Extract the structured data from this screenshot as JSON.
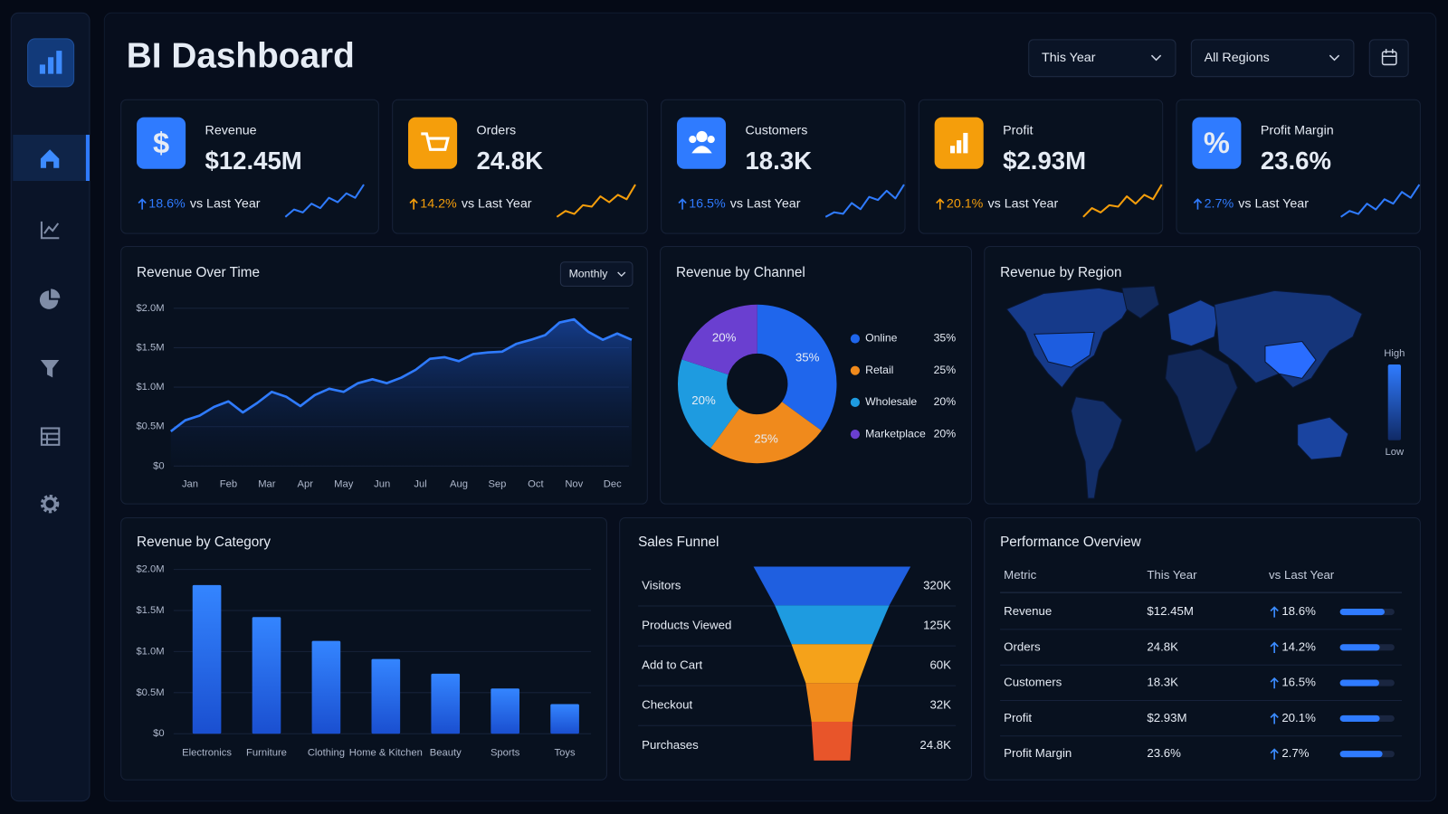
{
  "header": {
    "title": "BI Dashboard",
    "filters": [
      "This Year",
      "All Regions"
    ]
  },
  "kpis": [
    {
      "icon": "$",
      "label": "Revenue",
      "value": "$12.45M",
      "change": "18.6%",
      "compare": "vs Last Year",
      "color": "#2f7bff",
      "trend": [
        2,
        3,
        2.6,
        3.8,
        3.2,
        4.6,
        4,
        5.2,
        4.6,
        6.4
      ]
    },
    {
      "label": "Orders",
      "value": "24.8K",
      "change": "14.2%",
      "compare": "vs Last Year",
      "color": "#f59e0b",
      "trend": [
        2,
        2.8,
        2.4,
        3.6,
        3.4,
        4.8,
        4,
        5,
        4.4,
        6.4
      ]
    },
    {
      "label": "Customers",
      "value": "18.3K",
      "change": "16.5%",
      "compare": "vs Last Year",
      "color": "#2f7bff",
      "trend": [
        2,
        2.6,
        2.4,
        3.8,
        3,
        4.6,
        4.2,
        5.4,
        4.4,
        6.2
      ]
    },
    {
      "label": "Profit",
      "value": "$2.93M",
      "change": "20.1%",
      "compare": "vs Last Year",
      "color": "#f59e0b",
      "trend": [
        2,
        3.2,
        2.6,
        3.6,
        3.4,
        4.8,
        3.8,
        5,
        4.4,
        6.4
      ]
    },
    {
      "icon": "%",
      "label": "Profit Margin",
      "value": "23.6%",
      "change": "2.7%",
      "compare": "vs Last Year",
      "color": "#2f7bff",
      "trend": [
        2,
        2.8,
        2.4,
        3.8,
        3,
        4.4,
        3.8,
        5.4,
        4.6,
        6.4
      ]
    }
  ],
  "chart_data": [
    {
      "type": "line",
      "title": "Revenue Over Time",
      "control": "Monthly",
      "color": "#2f7bff",
      "grid": true,
      "x": [
        -0.5,
        -0.125,
        0.25,
        0.625,
        1,
        1.375,
        1.75,
        2.125,
        2.5,
        2.875,
        3.25,
        3.625,
        4,
        4.375,
        4.75,
        5.125,
        5.5,
        5.875,
        6.25,
        6.625,
        7,
        7.375,
        7.75,
        8.125,
        8.5,
        8.875,
        9.25,
        9.625,
        10,
        10.375,
        10.75,
        11.125,
        11.5
      ],
      "values": [
        440000,
        580000,
        640000,
        750000,
        820000,
        680000,
        800000,
        940000,
        880000,
        760000,
        900000,
        980000,
        940000,
        1050000,
        1100000,
        1050000,
        1120000,
        1220000,
        1360000,
        1380000,
        1330000,
        1420000,
        1440000,
        1450000,
        1550000,
        1600000,
        1660000,
        1820000,
        1860000,
        1700000,
        1600000,
        1680000,
        1600000
      ],
      "xlim": [
        -0.5,
        11.5
      ],
      "xticks": [
        {
          "value": 0,
          "label": "Jan"
        },
        {
          "value": 1,
          "label": "Feb"
        },
        {
          "value": 2,
          "label": "Mar"
        },
        {
          "value": 3,
          "label": "Apr"
        },
        {
          "value": 4,
          "label": "May"
        },
        {
          "value": 5,
          "label": "Jun"
        },
        {
          "value": 6,
          "label": "Jul"
        },
        {
          "value": 7,
          "label": "Aug"
        },
        {
          "value": 8,
          "label": "Sep"
        },
        {
          "value": 9,
          "label": "Oct"
        },
        {
          "value": 10,
          "label": "Nov"
        },
        {
          "value": 11,
          "label": "Dec"
        }
      ],
      "ylim": [
        0,
        2000000
      ],
      "yticks": [
        {
          "value": 0,
          "label": "$0"
        },
        {
          "value": 500000,
          "label": "$0.5M"
        },
        {
          "value": 1000000,
          "label": "$1.0M"
        },
        {
          "value": 1500000,
          "label": "$1.5M"
        },
        {
          "value": 2000000,
          "label": "$2.0M"
        }
      ]
    },
    {
      "type": "pie",
      "title": "Revenue by Channel",
      "categories": [
        "Online",
        "Retail",
        "Wholesale",
        "Marketplace"
      ],
      "values": [
        35,
        25,
        20,
        20
      ],
      "value_labels": [
        "35%",
        "25%",
        "20%",
        "20%"
      ],
      "colors": [
        "#1f66ec",
        "#f08a1c",
        "#1e9be0",
        "#6a3fd0"
      ]
    },
    {
      "type": "map",
      "title": "Revenue by Region",
      "legend_high": "High",
      "legend_low": "Low"
    },
    {
      "type": "bar",
      "title": "Revenue by Category",
      "color": "#2f7bff",
      "grid": true,
      "categories": [
        "Electronics",
        "Furniture",
        "Clothing",
        "Home & Kitchen",
        "Beauty",
        "Sports",
        "Toys"
      ],
      "values": [
        1810000,
        1420000,
        1130000,
        910000,
        730000,
        550000,
        360000
      ],
      "ylim": [
        0,
        2000000
      ],
      "yticks": [
        {
          "value": 0,
          "label": "$0"
        },
        {
          "value": 500000,
          "label": "$0.5M"
        },
        {
          "value": 1000000,
          "label": "$1.0M"
        },
        {
          "value": 1500000,
          "label": "$1.5M"
        },
        {
          "value": 2000000,
          "label": "$2.0M"
        }
      ]
    },
    {
      "type": "funnel",
      "title": "Sales Funnel",
      "categories": [
        "Visitors",
        "Products Viewed",
        "Add to Cart",
        "Checkout",
        "Purchases"
      ],
      "values": [
        320000,
        125000,
        60000,
        32000,
        24800
      ],
      "value_labels": [
        "320K",
        "125K",
        "60K",
        "32K",
        "24.8K"
      ],
      "colors": [
        "#1f5fe0",
        "#1e9be0",
        "#f5a21a",
        "#f08a1c",
        "#e8552a"
      ]
    }
  ],
  "table": {
    "title": "Performance Overview",
    "columns": [
      "Metric",
      "This Year",
      "vs Last Year"
    ],
    "rows": [
      {
        "metric": "Revenue",
        "this_year": "$12.45M",
        "change": "18.6%",
        "progress": 82
      },
      {
        "metric": "Orders",
        "this_year": "24.8K",
        "change": "14.2%",
        "progress": 73
      },
      {
        "metric": "Customers",
        "this_year": "18.3K",
        "change": "16.5%",
        "progress": 72
      },
      {
        "metric": "Profit",
        "this_year": "$2.93M",
        "change": "20.1%",
        "progress": 73
      },
      {
        "metric": "Profit Margin",
        "this_year": "23.6%",
        "change": "2.7%",
        "progress": 78
      }
    ]
  }
}
